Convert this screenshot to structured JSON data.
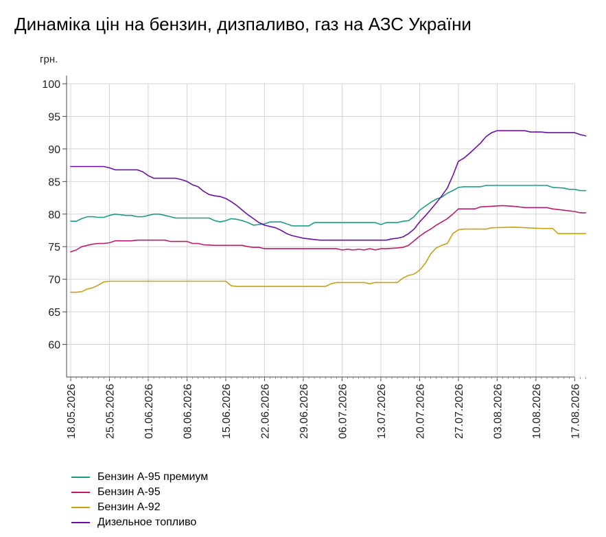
{
  "chart_data": {
    "type": "line",
    "title": "Динаміка цін на бензин, дизпаливо, газ на АЗС України",
    "ylabel": "грн.",
    "ylim": [
      55,
      100
    ],
    "yticks": [
      60,
      65,
      70,
      75,
      80,
      85,
      90,
      95,
      100
    ],
    "grid": true,
    "legend_position": "bottom-left",
    "x_start": "18.05.2026",
    "x_end": "19.08.2026",
    "xtick_labels": [
      "18.05.2026",
      "25.05.2026",
      "01.06.2026",
      "08.06.2026",
      "15.06.2026",
      "22.06.2026",
      "29.06.2026",
      "06.07.2026",
      "13.07.2026",
      "20.07.2026",
      "27.07.2026",
      "03.08.2026",
      "10.08.2026",
      "17.08.2026"
    ],
    "series": [
      {
        "name": "Бензин А-95 премиум",
        "color": "#1a9e85",
        "points": [
          [
            "18.05.2026",
            78.9
          ],
          [
            "19.05.2026",
            78.9
          ],
          [
            "20.05.2026",
            79.3
          ],
          [
            "21.05.2026",
            79.6
          ],
          [
            "22.05.2026",
            79.6
          ],
          [
            "23.05.2026",
            79.5
          ],
          [
            "24.05.2026",
            79.5
          ],
          [
            "25.05.2026",
            79.8
          ],
          [
            "26.05.2026",
            80.0
          ],
          [
            "27.05.2026",
            79.9
          ],
          [
            "28.05.2026",
            79.8
          ],
          [
            "29.05.2026",
            79.8
          ],
          [
            "30.05.2026",
            79.6
          ],
          [
            "31.05.2026",
            79.6
          ],
          [
            "01.06.2026",
            79.8
          ],
          [
            "02.06.2026",
            80.0
          ],
          [
            "03.06.2026",
            80.0
          ],
          [
            "04.06.2026",
            79.8
          ],
          [
            "05.06.2026",
            79.6
          ],
          [
            "06.06.2026",
            79.4
          ],
          [
            "12.06.2026",
            79.4
          ],
          [
            "13.06.2026",
            79.0
          ],
          [
            "14.06.2026",
            78.8
          ],
          [
            "15.06.2026",
            79.0
          ],
          [
            "16.06.2026",
            79.3
          ],
          [
            "17.06.2026",
            79.2
          ],
          [
            "18.06.2026",
            79.0
          ],
          [
            "19.06.2026",
            78.7
          ],
          [
            "20.06.2026",
            78.3
          ],
          [
            "21.06.2026",
            78.4
          ],
          [
            "22.06.2026",
            78.5
          ],
          [
            "23.06.2026",
            78.8
          ],
          [
            "24.06.2026",
            78.8
          ],
          [
            "25.06.2026",
            78.8
          ],
          [
            "26.06.2026",
            78.5
          ],
          [
            "27.06.2026",
            78.2
          ],
          [
            "30.06.2026",
            78.2
          ],
          [
            "01.07.2026",
            78.7
          ],
          [
            "12.07.2026",
            78.7
          ],
          [
            "13.07.2026",
            78.4
          ],
          [
            "14.07.2026",
            78.7
          ],
          [
            "16.07.2026",
            78.7
          ],
          [
            "17.07.2026",
            78.9
          ],
          [
            "18.07.2026",
            79.0
          ],
          [
            "19.07.2026",
            79.6
          ],
          [
            "20.07.2026",
            80.6
          ],
          [
            "21.07.2026",
            81.2
          ],
          [
            "22.07.2026",
            81.8
          ],
          [
            "23.07.2026",
            82.3
          ],
          [
            "24.07.2026",
            82.6
          ],
          [
            "25.07.2026",
            83.2
          ],
          [
            "26.07.2026",
            83.6
          ],
          [
            "27.07.2026",
            84.1
          ],
          [
            "28.07.2026",
            84.2
          ],
          [
            "31.07.2026",
            84.2
          ],
          [
            "01.08.2026",
            84.4
          ],
          [
            "12.08.2026",
            84.4
          ],
          [
            "13.08.2026",
            84.1
          ],
          [
            "15.08.2026",
            84.0
          ],
          [
            "16.08.2026",
            83.8
          ],
          [
            "17.08.2026",
            83.8
          ],
          [
            "18.08.2026",
            83.6
          ],
          [
            "19.08.2026",
            83.6
          ]
        ]
      },
      {
        "name": "Бензин А-95",
        "color": "#c0186a",
        "points": [
          [
            "18.05.2026",
            74.2
          ],
          [
            "19.05.2026",
            74.5
          ],
          [
            "20.05.2026",
            75.0
          ],
          [
            "21.05.2026",
            75.2
          ],
          [
            "22.05.2026",
            75.4
          ],
          [
            "23.05.2026",
            75.5
          ],
          [
            "24.05.2026",
            75.5
          ],
          [
            "25.05.2026",
            75.6
          ],
          [
            "26.05.2026",
            75.9
          ],
          [
            "29.05.2026",
            75.9
          ],
          [
            "30.05.2026",
            76.0
          ],
          [
            "04.06.2026",
            76.0
          ],
          [
            "05.06.2026",
            75.8
          ],
          [
            "08.06.2026",
            75.8
          ],
          [
            "09.06.2026",
            75.5
          ],
          [
            "10.06.2026",
            75.5
          ],
          [
            "11.06.2026",
            75.3
          ],
          [
            "13.06.2026",
            75.2
          ],
          [
            "18.06.2026",
            75.2
          ],
          [
            "19.06.2026",
            75.0
          ],
          [
            "20.06.2026",
            74.9
          ],
          [
            "21.06.2026",
            74.9
          ],
          [
            "22.06.2026",
            74.7
          ],
          [
            "05.07.2026",
            74.7
          ],
          [
            "06.07.2026",
            74.5
          ],
          [
            "07.07.2026",
            74.6
          ],
          [
            "08.07.2026",
            74.5
          ],
          [
            "09.07.2026",
            74.6
          ],
          [
            "10.07.2026",
            74.5
          ],
          [
            "11.07.2026",
            74.7
          ],
          [
            "12.07.2026",
            74.5
          ],
          [
            "13.07.2026",
            74.7
          ],
          [
            "14.07.2026",
            74.7
          ],
          [
            "16.07.2026",
            74.8
          ],
          [
            "17.07.2026",
            74.9
          ],
          [
            "18.07.2026",
            75.2
          ],
          [
            "19.07.2026",
            75.9
          ],
          [
            "20.07.2026",
            76.6
          ],
          [
            "21.07.2026",
            77.2
          ],
          [
            "22.07.2026",
            77.7
          ],
          [
            "23.07.2026",
            78.3
          ],
          [
            "24.07.2026",
            78.8
          ],
          [
            "25.07.2026",
            79.3
          ],
          [
            "26.07.2026",
            80.0
          ],
          [
            "27.07.2026",
            80.8
          ],
          [
            "30.07.2026",
            80.8
          ],
          [
            "31.07.2026",
            81.1
          ],
          [
            "04.08.2026",
            81.3
          ],
          [
            "06.08.2026",
            81.2
          ],
          [
            "08.08.2026",
            81.0
          ],
          [
            "12.08.2026",
            81.0
          ],
          [
            "13.08.2026",
            80.8
          ],
          [
            "15.08.2026",
            80.6
          ],
          [
            "17.08.2026",
            80.4
          ],
          [
            "18.08.2026",
            80.2
          ],
          [
            "19.08.2026",
            80.2
          ]
        ]
      },
      {
        "name": "Бензин А-92",
        "color": "#c9a012",
        "points": [
          [
            "18.05.2026",
            68.0
          ],
          [
            "19.05.2026",
            68.0
          ],
          [
            "20.05.2026",
            68.1
          ],
          [
            "21.05.2026",
            68.5
          ],
          [
            "22.05.2026",
            68.7
          ],
          [
            "23.05.2026",
            69.1
          ],
          [
            "24.05.2026",
            69.6
          ],
          [
            "25.05.2026",
            69.7
          ],
          [
            "15.06.2026",
            69.7
          ],
          [
            "16.06.2026",
            69.0
          ],
          [
            "17.06.2026",
            68.9
          ],
          [
            "03.07.2026",
            68.9
          ],
          [
            "04.07.2026",
            69.3
          ],
          [
            "05.07.2026",
            69.5
          ],
          [
            "10.07.2026",
            69.5
          ],
          [
            "11.07.2026",
            69.3
          ],
          [
            "12.07.2026",
            69.5
          ],
          [
            "16.07.2026",
            69.5
          ],
          [
            "17.07.2026",
            70.2
          ],
          [
            "18.07.2026",
            70.6
          ],
          [
            "19.07.2026",
            70.8
          ],
          [
            "20.07.2026",
            71.4
          ],
          [
            "21.07.2026",
            72.4
          ],
          [
            "22.07.2026",
            73.9
          ],
          [
            "23.07.2026",
            74.8
          ],
          [
            "24.07.2026",
            75.2
          ],
          [
            "25.07.2026",
            75.5
          ],
          [
            "26.07.2026",
            77.0
          ],
          [
            "27.07.2026",
            77.6
          ],
          [
            "28.07.2026",
            77.7
          ],
          [
            "01.08.2026",
            77.7
          ],
          [
            "02.08.2026",
            77.9
          ],
          [
            "06.08.2026",
            78.0
          ],
          [
            "11.08.2026",
            77.8
          ],
          [
            "13.08.2026",
            77.8
          ],
          [
            "14.08.2026",
            77.0
          ],
          [
            "19.08.2026",
            77.0
          ]
        ]
      },
      {
        "name": "Дизельное топливо",
        "color": "#6a0dad",
        "points": [
          [
            "18.05.2026",
            87.3
          ],
          [
            "24.05.2026",
            87.3
          ],
          [
            "25.05.2026",
            87.1
          ],
          [
            "26.05.2026",
            86.8
          ],
          [
            "30.05.2026",
            86.8
          ],
          [
            "31.05.2026",
            86.5
          ],
          [
            "01.06.2026",
            85.9
          ],
          [
            "02.06.2026",
            85.5
          ],
          [
            "06.06.2026",
            85.5
          ],
          [
            "07.06.2026",
            85.3
          ],
          [
            "08.06.2026",
            85.0
          ],
          [
            "09.06.2026",
            84.5
          ],
          [
            "10.06.2026",
            84.2
          ],
          [
            "11.06.2026",
            83.5
          ],
          [
            "12.06.2026",
            83.0
          ],
          [
            "13.06.2026",
            82.8
          ],
          [
            "14.06.2026",
            82.7
          ],
          [
            "15.06.2026",
            82.4
          ],
          [
            "16.06.2026",
            81.9
          ],
          [
            "17.06.2026",
            81.3
          ],
          [
            "18.06.2026",
            80.6
          ],
          [
            "19.06.2026",
            79.9
          ],
          [
            "20.06.2026",
            79.3
          ],
          [
            "21.06.2026",
            78.7
          ],
          [
            "22.06.2026",
            78.3
          ],
          [
            "23.06.2026",
            78.1
          ],
          [
            "24.06.2026",
            77.9
          ],
          [
            "25.06.2026",
            77.5
          ],
          [
            "26.06.2026",
            77.0
          ],
          [
            "27.06.2026",
            76.7
          ],
          [
            "28.06.2026",
            76.5
          ],
          [
            "29.06.2026",
            76.3
          ],
          [
            "30.06.2026",
            76.2
          ],
          [
            "01.07.2026",
            76.1
          ],
          [
            "02.07.2026",
            76.0
          ],
          [
            "14.07.2026",
            76.0
          ],
          [
            "15.07.2026",
            76.2
          ],
          [
            "16.07.2026",
            76.3
          ],
          [
            "17.07.2026",
            76.5
          ],
          [
            "18.07.2026",
            77.0
          ],
          [
            "19.07.2026",
            77.7
          ],
          [
            "20.07.2026",
            78.8
          ],
          [
            "21.07.2026",
            79.7
          ],
          [
            "22.07.2026",
            80.7
          ],
          [
            "23.07.2026",
            81.7
          ],
          [
            "24.07.2026",
            82.8
          ],
          [
            "25.07.2026",
            84.0
          ],
          [
            "26.07.2026",
            85.9
          ],
          [
            "27.07.2026",
            88.1
          ],
          [
            "28.07.2026",
            88.6
          ],
          [
            "29.07.2026",
            89.3
          ],
          [
            "30.07.2026",
            90.1
          ],
          [
            "31.07.2026",
            90.9
          ],
          [
            "01.08.2026",
            91.9
          ],
          [
            "02.08.2026",
            92.5
          ],
          [
            "03.08.2026",
            92.8
          ],
          [
            "08.08.2026",
            92.8
          ],
          [
            "09.08.2026",
            92.6
          ],
          [
            "11.08.2026",
            92.6
          ],
          [
            "12.08.2026",
            92.5
          ],
          [
            "17.08.2026",
            92.5
          ],
          [
            "18.08.2026",
            92.2
          ],
          [
            "19.08.2026",
            92.0
          ]
        ]
      }
    ]
  }
}
